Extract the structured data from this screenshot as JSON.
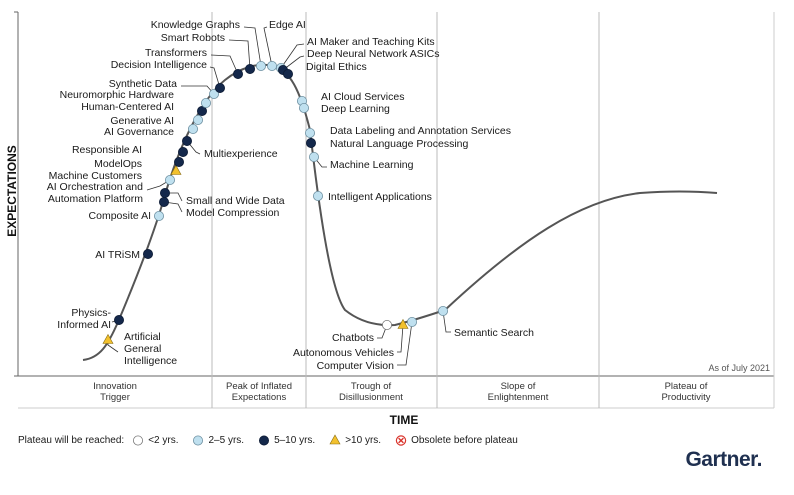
{
  "chart_data": {
    "type": "scatter",
    "title": "",
    "xlabel": "TIME",
    "ylabel": "EXPECTATIONS",
    "as_of": "As of July 2021",
    "phases": [
      {
        "lines": [
          "Innovation",
          "Trigger"
        ]
      },
      {
        "lines": [
          "Peak of Inflated",
          "Expectations"
        ]
      },
      {
        "lines": [
          "Trough of",
          "Disillusionment"
        ]
      },
      {
        "lines": [
          "Slope of",
          "Enlightenment"
        ]
      },
      {
        "lines": [
          "Plateau of",
          "Productivity"
        ]
      }
    ],
    "legend": {
      "title": "Plateau will be reached:",
      "items": [
        {
          "key": "lt2",
          "label": "<2 yrs."
        },
        {
          "key": "2to5",
          "label": "2–5 yrs."
        },
        {
          "key": "5to10",
          "label": "5–10 yrs."
        },
        {
          "key": "gt10",
          "label": ">10 yrs."
        },
        {
          "key": "obsolete",
          "label": "Obsolete before plateau"
        }
      ]
    },
    "colors": {
      "lt2": "#ffffff",
      "2to5": "#bfe0ef",
      "5to10": "#14284b",
      "gt10": "#f2c12e",
      "obsolete": "#d9332b",
      "curve": "#555555"
    },
    "technologies": [
      {
        "name": "Artificial General Intelligence",
        "cat": "gt10"
      },
      {
        "name": "Physics-Informed AI",
        "cat": "5to10"
      },
      {
        "name": "AI TRiSM",
        "cat": "5to10"
      },
      {
        "name": "Composite AI",
        "cat": "2to5"
      },
      {
        "name": "Small and Wide Data",
        "cat": "5to10"
      },
      {
        "name": "Model Compression",
        "cat": "5to10"
      },
      {
        "name": "AI Orchestration and Automation Platform",
        "cat": "2to5"
      },
      {
        "name": "Machine Customers",
        "cat": "gt10"
      },
      {
        "name": "ModelOps",
        "cat": "5to10"
      },
      {
        "name": "Multiexperience",
        "cat": "5to10"
      },
      {
        "name": "Responsible AI",
        "cat": "5to10"
      },
      {
        "name": "AI Governance",
        "cat": "2to5"
      },
      {
        "name": "Generative AI",
        "cat": "2to5"
      },
      {
        "name": "Human-Centered AI",
        "cat": "5to10"
      },
      {
        "name": "Neuromorphic Hardware",
        "cat": "2to5"
      },
      {
        "name": "Synthetic Data",
        "cat": "2to5"
      },
      {
        "name": "Decision Intelligence",
        "cat": "5to10"
      },
      {
        "name": "Transformers",
        "cat": "5to10"
      },
      {
        "name": "Smart Robots",
        "cat": "5to10"
      },
      {
        "name": "Knowledge Graphs",
        "cat": "2to5"
      },
      {
        "name": "Edge AI",
        "cat": "2to5"
      },
      {
        "name": "AI Maker and Teaching Kits",
        "cat": "2to5"
      },
      {
        "name": "Deep Neural Network ASICs",
        "cat": "5to10"
      },
      {
        "name": "Digital Ethics",
        "cat": "5to10"
      },
      {
        "name": "AI Cloud Services",
        "cat": "2to5"
      },
      {
        "name": "Deep Learning",
        "cat": "2to5"
      },
      {
        "name": "Data Labeling and Annotation Services",
        "cat": "2to5"
      },
      {
        "name": "Natural Language Processing",
        "cat": "5to10"
      },
      {
        "name": "Machine Learning",
        "cat": "2to5"
      },
      {
        "name": "Intelligent Applications",
        "cat": "2to5"
      },
      {
        "name": "Chatbots",
        "cat": "lt2"
      },
      {
        "name": "Autonomous Vehicles",
        "cat": "gt10"
      },
      {
        "name": "Computer Vision",
        "cat": "2to5"
      },
      {
        "name": "Semantic Search",
        "cat": "2to5"
      }
    ]
  },
  "brand": "Gartner"
}
